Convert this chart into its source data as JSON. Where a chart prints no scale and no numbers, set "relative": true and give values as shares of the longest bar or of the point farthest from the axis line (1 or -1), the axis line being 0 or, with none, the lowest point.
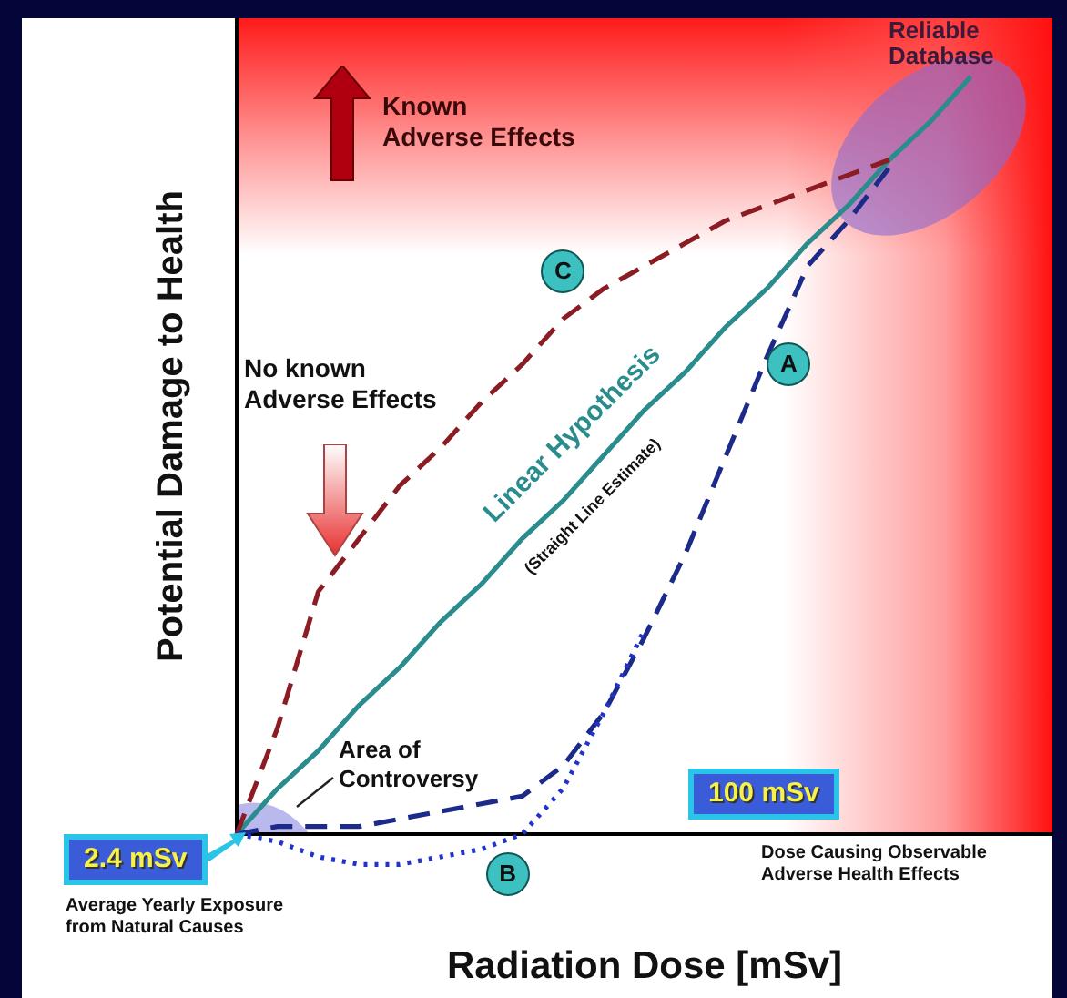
{
  "chart_data": {
    "type": "line",
    "relative": true,
    "xlabel": "Radiation Dose [mSv]",
    "ylabel": "Potential Damage to Health",
    "categories": [
      null,
      null,
      null,
      null,
      null,
      null,
      null,
      null,
      null,
      null,
      null,
      null,
      null,
      null,
      null,
      null,
      null,
      null,
      null,
      null,
      null
    ],
    "series": [
      {
        "name": "Linear Hypothesis",
        "color": "#2a8c8c",
        "line_style": "solid",
        "values": [
          0,
          0.06,
          0.11,
          0.17,
          0.22,
          0.28,
          0.33,
          0.39,
          0.44,
          0.5,
          0.56,
          0.61,
          0.67,
          0.72,
          0.78,
          0.83,
          0.89,
          0.94,
          1,
          null,
          null
        ]
      },
      {
        "name": "C",
        "color": "#8b1c24",
        "line_style": "dashed",
        "values": [
          0,
          0.14,
          0.32,
          0.39,
          0.46,
          0.51,
          0.57,
          0.62,
          0.68,
          0.72,
          0.75,
          0.78,
          0.81,
          0.83,
          0.85,
          0.87,
          0.89,
          null,
          null,
          null,
          null
        ]
      },
      {
        "name": "A",
        "color": "#1c2a8a",
        "line_style": "dashed",
        "values": [
          0,
          0.01,
          0.01,
          0.01,
          0.02,
          0.03,
          0.04,
          0.05,
          0.09,
          0.16,
          0.26,
          0.37,
          0.5,
          0.63,
          0.75,
          0.81,
          0.88,
          null,
          null,
          null,
          null
        ]
      },
      {
        "name": "B",
        "color": "#2233cc",
        "line_style": "dotted",
        "values": [
          0,
          -0.01,
          -0.03,
          -0.04,
          -0.04,
          -0.03,
          -0.02,
          0,
          0.06,
          0.16,
          0.27,
          null,
          null,
          null,
          null,
          null,
          null,
          null,
          null,
          null,
          null
        ]
      }
    ],
    "annotations": [
      "(Straight Line Estimate)",
      "Known\nAdverse Effects",
      "No known\nAdverse Effects",
      "Reliable\nDatabase",
      "Area of\nControversy",
      "2.4 mSv",
      "Average Yearly Exposure\nfrom Natural Causes",
      "100 mSv",
      "Dose Causing Observable\nAdverse Health Effects"
    ],
    "grid": false,
    "legend": false,
    "marker": "none"
  }
}
